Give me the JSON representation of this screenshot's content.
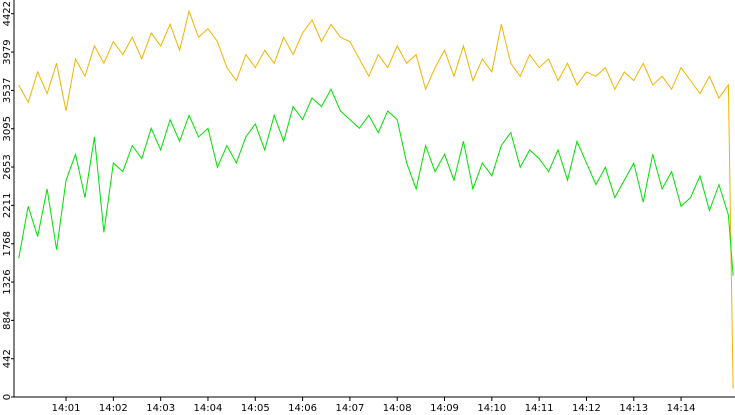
{
  "chart_data": {
    "type": "line",
    "x": [
      840.0,
      840.2,
      840.4,
      840.6,
      840.8,
      841.0,
      841.2,
      841.4,
      841.6,
      841.8,
      842.0,
      842.2,
      842.4,
      842.6,
      842.8,
      843.0,
      843.2,
      843.4,
      843.6,
      843.8,
      844.0,
      844.2,
      844.4,
      844.6,
      844.8,
      845.0,
      845.2,
      845.4,
      845.6,
      845.8,
      846.0,
      846.2,
      846.4,
      846.6,
      846.8,
      847.0,
      847.2,
      847.4,
      847.6,
      847.8,
      848.0,
      848.2,
      848.4,
      848.6,
      848.8,
      849.0,
      849.2,
      849.4,
      849.6,
      849.8,
      850.0,
      850.2,
      850.4,
      850.6,
      850.8,
      851.0,
      851.2,
      851.4,
      851.6,
      851.8,
      852.0,
      852.2,
      852.4,
      852.6,
      852.8,
      853.0,
      853.2,
      853.4,
      853.6,
      853.8,
      854.0,
      854.2,
      854.4,
      854.6,
      854.8,
      855.0,
      855.1
    ],
    "series": [
      {
        "color": "#f0b400",
        "values": [
          3600,
          3400,
          3750,
          3500,
          3850,
          3300,
          3900,
          3700,
          4050,
          3850,
          4100,
          3950,
          4150,
          3900,
          4200,
          4050,
          4300,
          4000,
          4450,
          4150,
          4250,
          4100,
          3800,
          3650,
          3950,
          3800,
          4000,
          3850,
          4150,
          3950,
          4200,
          4350,
          4100,
          4300,
          4150,
          4100,
          3900,
          3700,
          3950,
          3800,
          4050,
          3850,
          3950,
          3550,
          3800,
          4000,
          3700,
          4050,
          3650,
          3900,
          3750,
          4300,
          3850,
          3700,
          3950,
          3800,
          3900,
          3650,
          3850,
          3600,
          3750,
          3700,
          3800,
          3550,
          3750,
          3650,
          3850,
          3600,
          3700,
          3550,
          3800,
          3650,
          3500,
          3700,
          3450,
          3600,
          100
        ]
      },
      {
        "color": "#00e000",
        "values": [
          1600,
          2200,
          1850,
          2400,
          1700,
          2500,
          2800,
          2300,
          3000,
          1900,
          2700,
          2600,
          2900,
          2750,
          3100,
          2850,
          3200,
          2950,
          3250,
          3000,
          3100,
          2650,
          2900,
          2700,
          3000,
          3150,
          2850,
          3250,
          2950,
          3350,
          3200,
          3450,
          3350,
          3550,
          3300,
          3200,
          3100,
          3250,
          3050,
          3300,
          3200,
          2700,
          2400,
          2900,
          2600,
          2800,
          2500,
          2950,
          2400,
          2700,
          2550,
          2900,
          3050,
          2650,
          2850,
          2750,
          2600,
          2850,
          2500,
          2950,
          2700,
          2450,
          2650,
          2300,
          2500,
          2700,
          2250,
          2800,
          2400,
          2600,
          2200,
          2300,
          2550,
          2150,
          2450,
          2100,
          1400
        ]
      }
    ],
    "xlim": [
      839.9,
      855.14
    ],
    "xticks": [
      {
        "value": 841,
        "label": "14:01"
      },
      {
        "value": 842,
        "label": "14:02"
      },
      {
        "value": 843,
        "label": "14:03"
      },
      {
        "value": 844,
        "label": "14:04"
      },
      {
        "value": 845,
        "label": "14:05"
      },
      {
        "value": 846,
        "label": "14:06"
      },
      {
        "value": 847,
        "label": "14:07"
      },
      {
        "value": 848,
        "label": "14:08"
      },
      {
        "value": 849,
        "label": "14:09"
      },
      {
        "value": 850,
        "label": "14:10"
      },
      {
        "value": 851,
        "label": "14:11"
      },
      {
        "value": 852,
        "label": "14:12"
      },
      {
        "value": 853,
        "label": "14:13"
      },
      {
        "value": 854,
        "label": "14:14"
      }
    ],
    "ylim": [
      0,
      4580
    ],
    "yticks": [
      0,
      442,
      884,
      1326,
      1768,
      2211,
      2653,
      3095,
      3537,
      3979,
      4422
    ]
  }
}
